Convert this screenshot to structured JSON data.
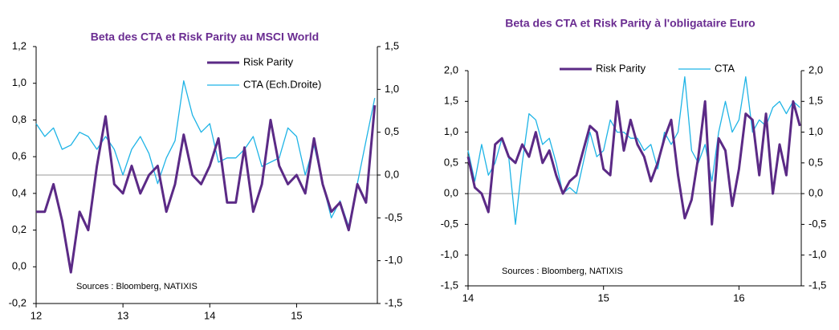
{
  "chart_data": [
    {
      "type": "line",
      "title": "Beta des CTA et Risk Parity au MSCI World",
      "annotation": "Sources : Bloomberg, NATIXIS",
      "x": [
        12.0,
        12.1,
        12.2,
        12.3,
        12.4,
        12.5,
        12.6,
        12.7,
        12.8,
        12.9,
        13.0,
        13.1,
        13.2,
        13.3,
        13.4,
        13.5,
        13.6,
        13.7,
        13.8,
        13.9,
        14.0,
        14.1,
        14.2,
        14.3,
        14.4,
        14.5,
        14.6,
        14.7,
        14.8,
        14.9,
        15.0,
        15.1,
        15.2,
        15.3,
        15.4,
        15.5,
        15.6,
        15.7,
        15.8,
        15.9
      ],
      "series": [
        {
          "name": "Risk Parity",
          "color": "#5b2a86",
          "values": [
            0.3,
            0.3,
            0.45,
            0.25,
            -0.03,
            0.3,
            0.2,
            0.55,
            0.82,
            0.45,
            0.4,
            0.55,
            0.4,
            0.5,
            0.55,
            0.3,
            0.45,
            0.72,
            0.5,
            0.45,
            0.55,
            0.7,
            0.35,
            0.35,
            0.65,
            0.3,
            0.45,
            0.8,
            0.55,
            0.45,
            0.5,
            0.4,
            0.7,
            0.45,
            0.3,
            0.35,
            0.2,
            0.45,
            0.35,
            0.88
          ]
        },
        {
          "name": "CTA (Ech.Droite)",
          "color": "#1fb4e6",
          "axis": "y2",
          "values": [
            0.6,
            0.45,
            0.55,
            0.3,
            0.35,
            0.5,
            0.45,
            0.3,
            0.45,
            0.3,
            0.0,
            0.3,
            0.45,
            0.25,
            -0.1,
            0.2,
            0.4,
            1.1,
            0.7,
            0.5,
            0.6,
            0.15,
            0.2,
            0.2,
            0.3,
            0.45,
            0.1,
            0.15,
            0.2,
            0.55,
            0.45,
            0.0,
            0.35,
            -0.1,
            -0.5,
            -0.3,
            -0.6,
            -0.1,
            0.4,
            0.9
          ]
        }
      ],
      "xlim": [
        12,
        15.93
      ],
      "xticks": [
        12,
        13,
        14,
        15
      ],
      "ylim": [
        -0.2,
        1.2
      ],
      "yticks": [
        {
          "value": -0.2,
          "label": "-0,2"
        },
        {
          "value": 0,
          "label": "0,0"
        },
        {
          "value": 0.2,
          "label": "0,2"
        },
        {
          "value": 0.4,
          "label": "0,4"
        },
        {
          "value": 0.6,
          "label": "0,6"
        },
        {
          "value": 0.8,
          "label": "0,8"
        },
        {
          "value": 1.0,
          "label": "1,0"
        },
        {
          "value": 1.2,
          "label": "1,2"
        }
      ],
      "y2lim": [
        -1.5,
        1.5
      ],
      "y2ticks": [
        {
          "value": -1.5,
          "label": "-1,5"
        },
        {
          "value": -1.0,
          "label": "-1,0"
        },
        {
          "value": -0.5,
          "label": "-0,5"
        },
        {
          "value": 0,
          "label": "0,0"
        },
        {
          "value": 0.5,
          "label": "0,5"
        },
        {
          "value": 1.0,
          "label": "1,0"
        },
        {
          "value": 1.5,
          "label": "1,5"
        }
      ],
      "zero_line": true,
      "legend": "upper right"
    },
    {
      "type": "line",
      "title": "Beta des CTA et Risk Parity  à l'obligataire Euro",
      "annotation": "Sources : Bloomberg, NATIXIS",
      "x": [
        14.0,
        14.05,
        14.1,
        14.15,
        14.2,
        14.25,
        14.3,
        14.35,
        14.4,
        14.45,
        14.5,
        14.55,
        14.6,
        14.65,
        14.7,
        14.75,
        14.8,
        14.85,
        14.9,
        14.95,
        15.0,
        15.05,
        15.1,
        15.15,
        15.2,
        15.25,
        15.3,
        15.35,
        15.4,
        15.45,
        15.5,
        15.55,
        15.6,
        15.65,
        15.7,
        15.75,
        15.8,
        15.85,
        15.9,
        15.95,
        16.0,
        16.05,
        16.1,
        16.15,
        16.2,
        16.25,
        16.3,
        16.35,
        16.4,
        16.45
      ],
      "series": [
        {
          "name": "Risk Parity",
          "color": "#5b2a86",
          "values": [
            0.6,
            0.1,
            0.0,
            -0.3,
            0.8,
            0.9,
            0.6,
            0.5,
            0.8,
            0.6,
            1.0,
            0.5,
            0.7,
            0.3,
            0.0,
            0.2,
            0.3,
            0.7,
            1.1,
            1.0,
            0.4,
            0.3,
            1.5,
            0.7,
            1.2,
            0.8,
            0.6,
            0.2,
            0.5,
            0.9,
            1.2,
            0.3,
            -0.4,
            -0.1,
            0.6,
            1.5,
            -0.5,
            0.9,
            0.7,
            -0.2,
            0.4,
            1.3,
            1.2,
            0.3,
            1.3,
            0.0,
            0.8,
            0.3,
            1.5,
            1.1
          ]
        },
        {
          "name": "CTA",
          "color": "#1fb4e6",
          "axis": "y2",
          "values": [
            0.7,
            0.2,
            0.8,
            0.3,
            0.5,
            0.9,
            0.6,
            -0.5,
            0.5,
            1.3,
            1.2,
            0.8,
            0.9,
            0.5,
            0.0,
            0.1,
            0.0,
            0.5,
            1.0,
            0.6,
            0.7,
            1.2,
            1.0,
            1.0,
            0.9,
            0.9,
            0.7,
            0.8,
            0.4,
            1.0,
            0.8,
            1.0,
            1.9,
            0.7,
            0.5,
            0.8,
            0.2,
            1.0,
            1.5,
            1.0,
            1.2,
            1.9,
            1.0,
            1.2,
            1.1,
            1.4,
            1.5,
            1.3,
            1.5,
            1.4
          ]
        }
      ],
      "xlim": [
        14,
        16.46
      ],
      "xticks": [
        14,
        15,
        16
      ],
      "ylim": [
        -1.5,
        2.0
      ],
      "yticks": [
        {
          "value": -1.5,
          "label": "-1,5"
        },
        {
          "value": -1.0,
          "label": "-1,0"
        },
        {
          "value": -0.5,
          "label": "-0,5"
        },
        {
          "value": 0,
          "label": "0,0"
        },
        {
          "value": 0.5,
          "label": "0,5"
        },
        {
          "value": 1.0,
          "label": "1,0"
        },
        {
          "value": 1.5,
          "label": "1,5"
        },
        {
          "value": 2.0,
          "label": "2,0"
        }
      ],
      "y2lim": [
        -1.5,
        2.0
      ],
      "y2ticks": [
        {
          "value": -1.5,
          "label": "-1,5"
        },
        {
          "value": -1.0,
          "label": "-1,0"
        },
        {
          "value": -0.5,
          "label": "-0,5"
        },
        {
          "value": 0,
          "label": "0,0"
        },
        {
          "value": 0.5,
          "label": "0,5"
        },
        {
          "value": 1.0,
          "label": "1,0"
        },
        {
          "value": 1.5,
          "label": "1,5"
        },
        {
          "value": 2.0,
          "label": "2,0"
        }
      ],
      "zero_line": true,
      "legend": "top"
    }
  ]
}
